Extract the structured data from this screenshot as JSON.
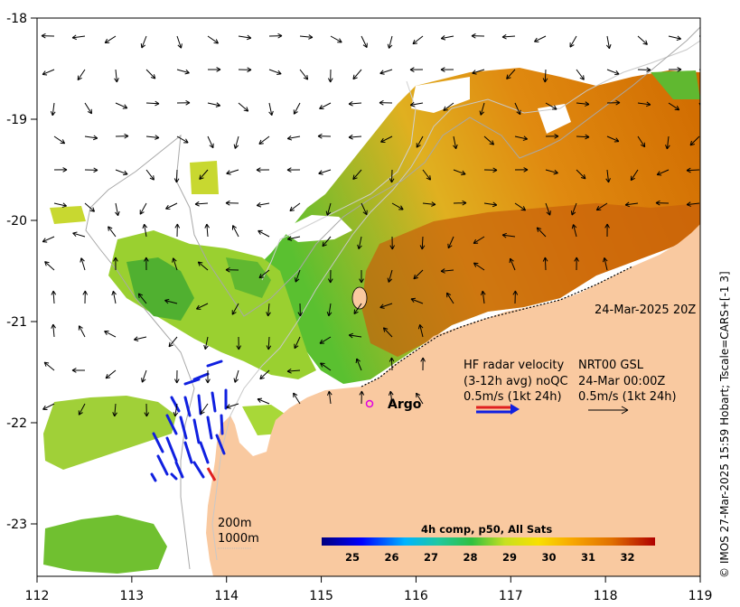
{
  "map": {
    "date_label": "24-Mar-2025 20Z",
    "credit": "© IMOS 27-Mar-2025 15:59 Hobart; Tscale=CARS+[-1 3]",
    "lon_ticks": [
      "112",
      "113",
      "114",
      "115",
      "116",
      "117",
      "118",
      "119"
    ],
    "lat_ticks": [
      "-18",
      "-19",
      "-20",
      "-21",
      "-22",
      "-23"
    ],
    "argo_label": "Argo",
    "depth_200": "200m",
    "depth_1000": "1000m",
    "hf_radar": {
      "line1": "HF radar velocity",
      "line2": "(3-12h avg) noQC",
      "line3": "0.5m/s (1kt 24h)"
    },
    "model": {
      "line1": "NRT00 GSL",
      "line2": "24-Mar 00:00Z",
      "line3": "0.5m/s (1kt 24h)"
    },
    "colorbar": {
      "title": "4h comp, p50, All Sats",
      "ticks": [
        "25",
        "26",
        "27",
        "28",
        "29",
        "30",
        "31",
        "32"
      ]
    },
    "colors": {
      "land": "#f9c9a0",
      "sst_cold": "#1a9a2a",
      "sst_warm": "#c85a00",
      "hf_arrow": "#1020e0",
      "argo": "#e000e0"
    }
  }
}
